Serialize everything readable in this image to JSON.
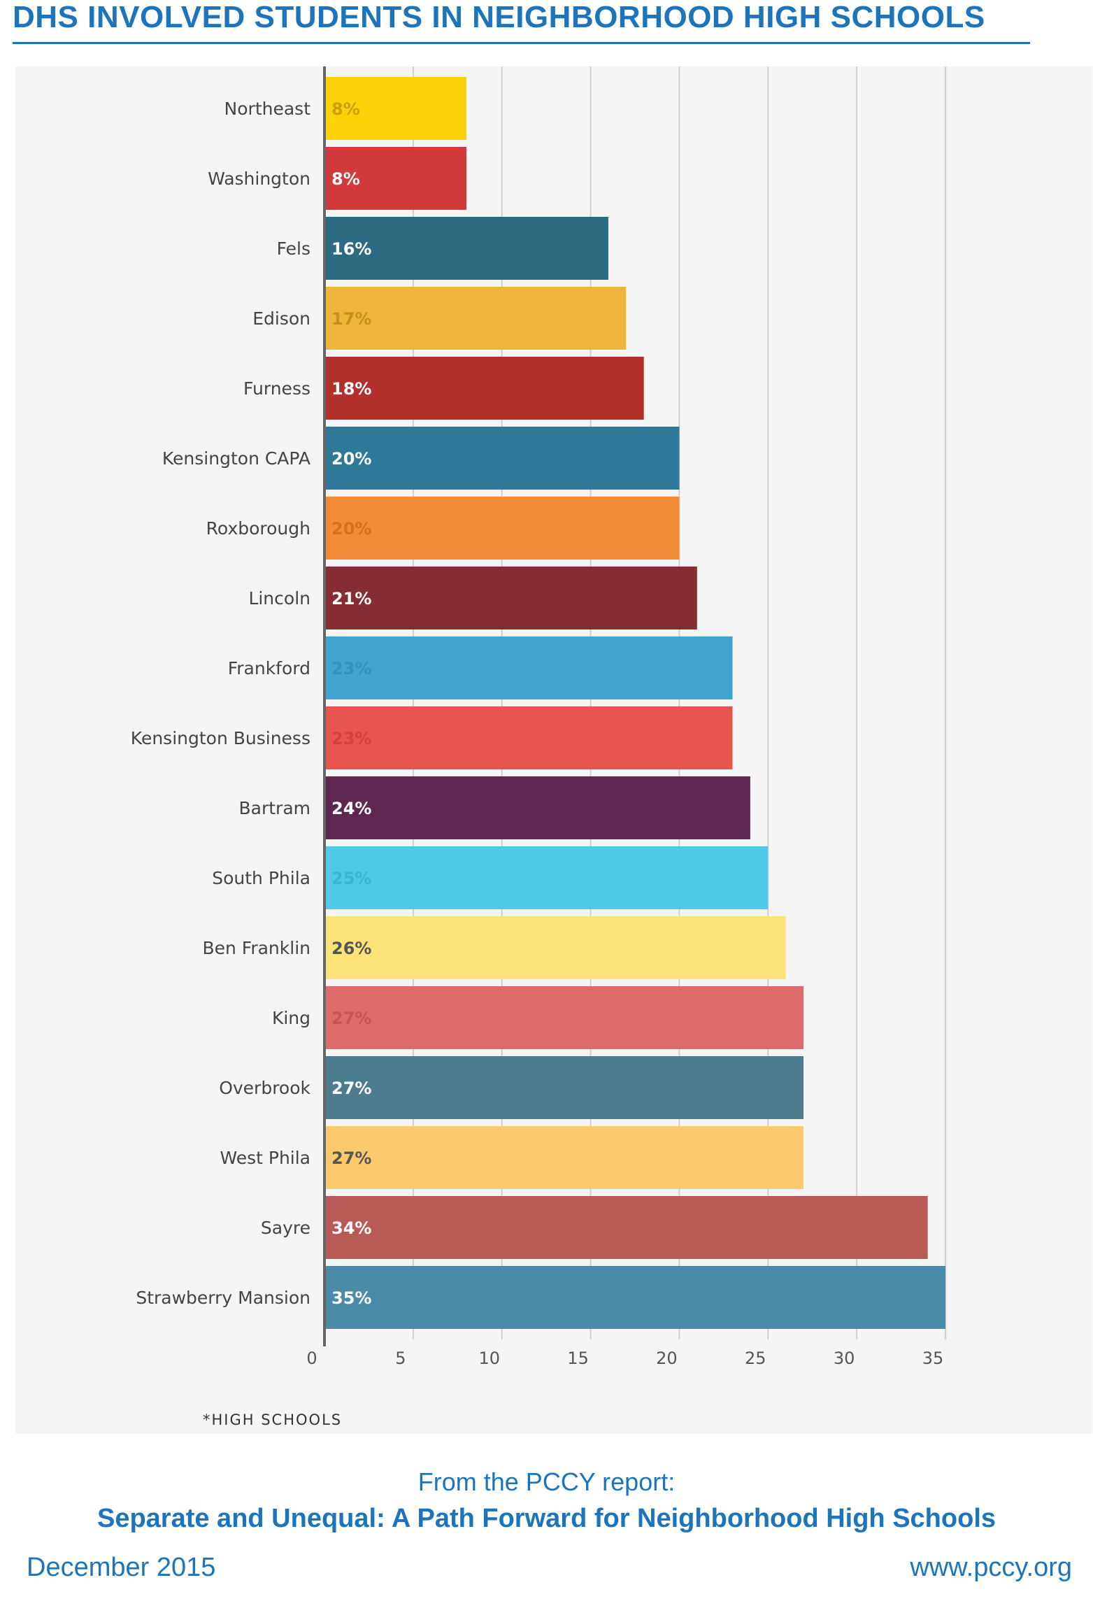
{
  "header": {
    "title": "DHS INVOLVED STUDENTS IN NEIGHBORHOOD HIGH SCHOOLS"
  },
  "chart_data": {
    "type": "bar",
    "orientation": "horizontal",
    "title": "DHS INVOLVED STUDENTS IN NEIGHBORHOOD HIGH SCHOOLS",
    "xlabel": "",
    "ylabel": "",
    "xlim": [
      0,
      35
    ],
    "xticks": [
      0,
      5,
      10,
      15,
      20,
      25,
      30,
      35
    ],
    "grid": true,
    "categories": [
      "Northeast",
      "Washington",
      "Fels",
      "Edison",
      "Furness",
      "Kensington CAPA",
      "Roxborough",
      "Lincoln",
      "Frankford",
      "Kensington Business",
      "Bartram",
      "South Phila",
      "Ben Franklin",
      "King",
      "Overbrook",
      "West Phila",
      "Sayre",
      "Strawberry Mansion"
    ],
    "values": [
      8,
      8,
      16,
      17,
      18,
      20,
      20,
      21,
      23,
      23,
      24,
      25,
      26,
      27,
      27,
      27,
      34,
      35
    ],
    "data_labels": [
      "8%",
      "8%",
      "16%",
      "17%",
      "18%",
      "20%",
      "20%",
      "21%",
      "23%",
      "23%",
      "24%",
      "25%",
      "26%",
      "27%",
      "27%",
      "27%",
      "34%",
      "35%"
    ],
    "colors": [
      "#fdd10a",
      "#d03a3a",
      "#2b6b82",
      "#f0b43c",
      "#b2302a",
      "#2e7898",
      "#f28c37",
      "#852c34",
      "#41a3cf",
      "#e6564d",
      "#5e2750",
      "#50c8e8",
      "#fde37a",
      "#dc6b6b",
      "#4b7d8e",
      "#fdc96e",
      "#b85a56",
      "#4a8ca8"
    ],
    "label_colors": [
      "#c9a000",
      "#ffffff",
      "#ffffff",
      "#c98e1f",
      "#ffffff",
      "#ffffff",
      "#d5701f",
      "#ffffff",
      "#3590bb",
      "#cf443c",
      "#ffffff",
      "#3cb4d4",
      "#555555",
      "#c85555",
      "#ffffff",
      "#555555",
      "#ffffff",
      "#ffffff"
    ],
    "footnote": "*HIGH SCHOOLS"
  },
  "footer": {
    "report_intro": "From the PCCY report:",
    "report_title": "Separate and Unequal: A Path Forward for Neighborhood High Schools",
    "date": "December 2015",
    "website": "www.pccy.org"
  }
}
